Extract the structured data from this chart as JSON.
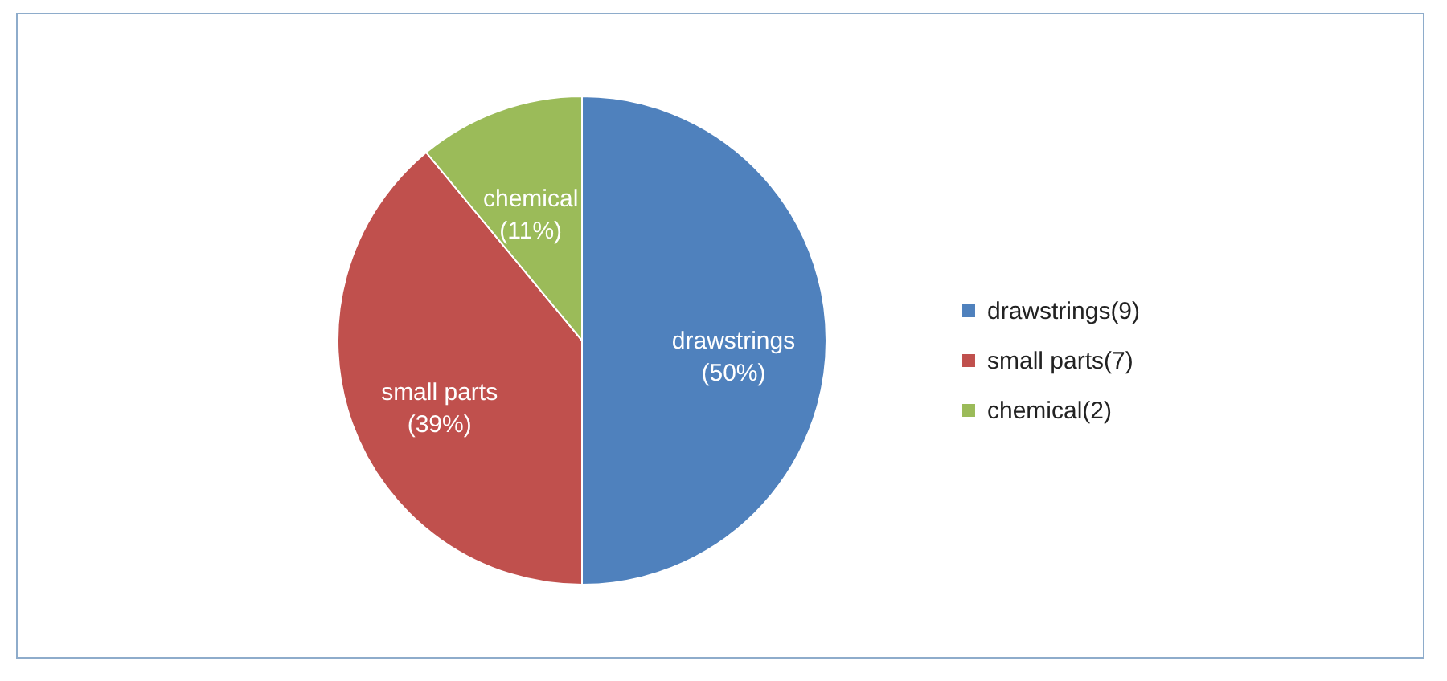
{
  "chart_data": {
    "type": "pie",
    "categories": [
      "drawstrings(9)",
      "small parts(7)",
      "chemical(2)"
    ],
    "values": [
      50,
      39,
      11
    ],
    "colors": [
      "#4f81bd",
      "#c0504d",
      "#9bbb59"
    ],
    "value_labels": [
      "drawstrings\n(50%)",
      "small parts\n(39%)",
      "chemical\n(11%)"
    ],
    "legend": "right"
  }
}
